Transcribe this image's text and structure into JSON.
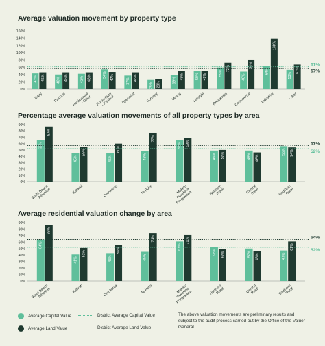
{
  "colors": {
    "background": "#eff1e6",
    "capital": "#5fbf9b",
    "land": "#1f3a30",
    "capital_avg_line": "#5fbf9b",
    "land_avg_line": "#1f3a30"
  },
  "legend": {
    "capital": "Average Capital Value",
    "land": "Average Land Value",
    "district_capital": "District Average Capital Value",
    "district_land": "District Average Land Value",
    "note": "The above valuation movements are preliminary results and subject to the audit process carried out by the Office of the Valuer-General."
  },
  "chart_data": [
    {
      "type": "bar",
      "title": "Average valuation movement by property type",
      "ylim": [
        0,
        160
      ],
      "yticks": [
        "0%",
        "20%",
        "40%",
        "60%",
        "80%",
        "100%",
        "120%",
        "140%",
        "160%"
      ],
      "categories": [
        "Dairy",
        "Pastoral",
        "Horticultural - Other",
        "Horticulture - Kiwifruit",
        "Specialist",
        "Forestry",
        "Mining",
        "Lifestyle",
        "Residential",
        "Commercial",
        "Industrial",
        "Other"
      ],
      "series": [
        {
          "name": "Average Capital Value",
          "values": [
            43,
            40,
            42,
            54,
            37,
            25,
            39,
            50,
            59,
            48,
            64,
            53
          ],
          "labels": [
            "43%",
            "40%",
            "42%",
            "54%",
            "37%",
            "25%",
            "39%",
            "50%",
            "59%",
            "48%",
            "64%",
            "53%"
          ]
        },
        {
          "name": "Average Land Value",
          "values": [
            46,
            46,
            46,
            47,
            46,
            28,
            49,
            49,
            72,
            81,
            138,
            67
          ],
          "labels": [
            "46%",
            "46%",
            "46%",
            "47%",
            "46%",
            "28%",
            "49%",
            "49%",
            "72%",
            "81%",
            "138%",
            "67%"
          ]
        }
      ],
      "district_land": 57,
      "district_land_label": "57%",
      "district_capital": 61,
      "district_capital_label": "61%"
    },
    {
      "type": "bar",
      "title": "Percentage average valuation movements of all property types by area",
      "ylim": [
        0,
        90
      ],
      "yticks": [
        "0%",
        "10%",
        "20%",
        "30%",
        "40%",
        "50%",
        "60%",
        "70%",
        "80%",
        "90%"
      ],
      "categories": [
        "Waihi Beach Athenree",
        "Katikati",
        "Ōmokoroa",
        "Te Puke",
        "Maketu Pukehina Pongakawa",
        "Northern Rural",
        "Central Rural",
        "Southern Rural"
      ],
      "series": [
        {
          "name": "Average Capital Value",
          "values": [
            66,
            45,
            45,
            48,
            66,
            49,
            49,
            56
          ],
          "labels": [
            "66%",
            "45%",
            "45%",
            "48%",
            "66%",
            "49%",
            "49%",
            "56%"
          ]
        },
        {
          "name": "Average Land Value",
          "values": [
            87,
            55,
            60,
            77,
            69,
            50,
            46,
            54
          ],
          "labels": [
            "87%",
            "55%",
            "60%",
            "77%",
            "69%",
            "50%",
            "46%",
            "54%"
          ]
        }
      ],
      "district_land": 57,
      "district_land_label": "57%",
      "district_capital": 52,
      "district_capital_label": "52%"
    },
    {
      "type": "bar",
      "title": "Average residential valuation change by area",
      "ylim": [
        0,
        90
      ],
      "yticks": [
        "0%",
        "10%",
        "20%",
        "30%",
        "40%",
        "50%",
        "60%",
        "70%",
        "80%",
        "90%"
      ],
      "categories": [
        "Waihi Beach Athenree",
        "Katikati",
        "Ōmokoroa",
        "Te Puke",
        "Maketu Pukehina Pongakawa",
        "Northern Rural",
        "Central Rural",
        "Southern Rural"
      ],
      "series": [
        {
          "name": "Average Capital Value",
          "values": [
            64,
            41,
            43,
            45,
            61,
            52,
            50,
            47
          ],
          "labels": [
            "64%",
            "41%",
            "43%",
            "45%",
            "61%",
            "52%",
            "50%",
            "47%"
          ]
        },
        {
          "name": "Average Land Value",
          "values": [
            86,
            51,
            56,
            74,
            71,
            49,
            46,
            61
          ],
          "labels": [
            "86%",
            "51%",
            "56%",
            "74%",
            "71%",
            "49%",
            "46%",
            "61%"
          ]
        }
      ],
      "district_land": 64,
      "district_land_label": "64%",
      "district_capital": 52,
      "district_capital_label": "52%"
    }
  ]
}
